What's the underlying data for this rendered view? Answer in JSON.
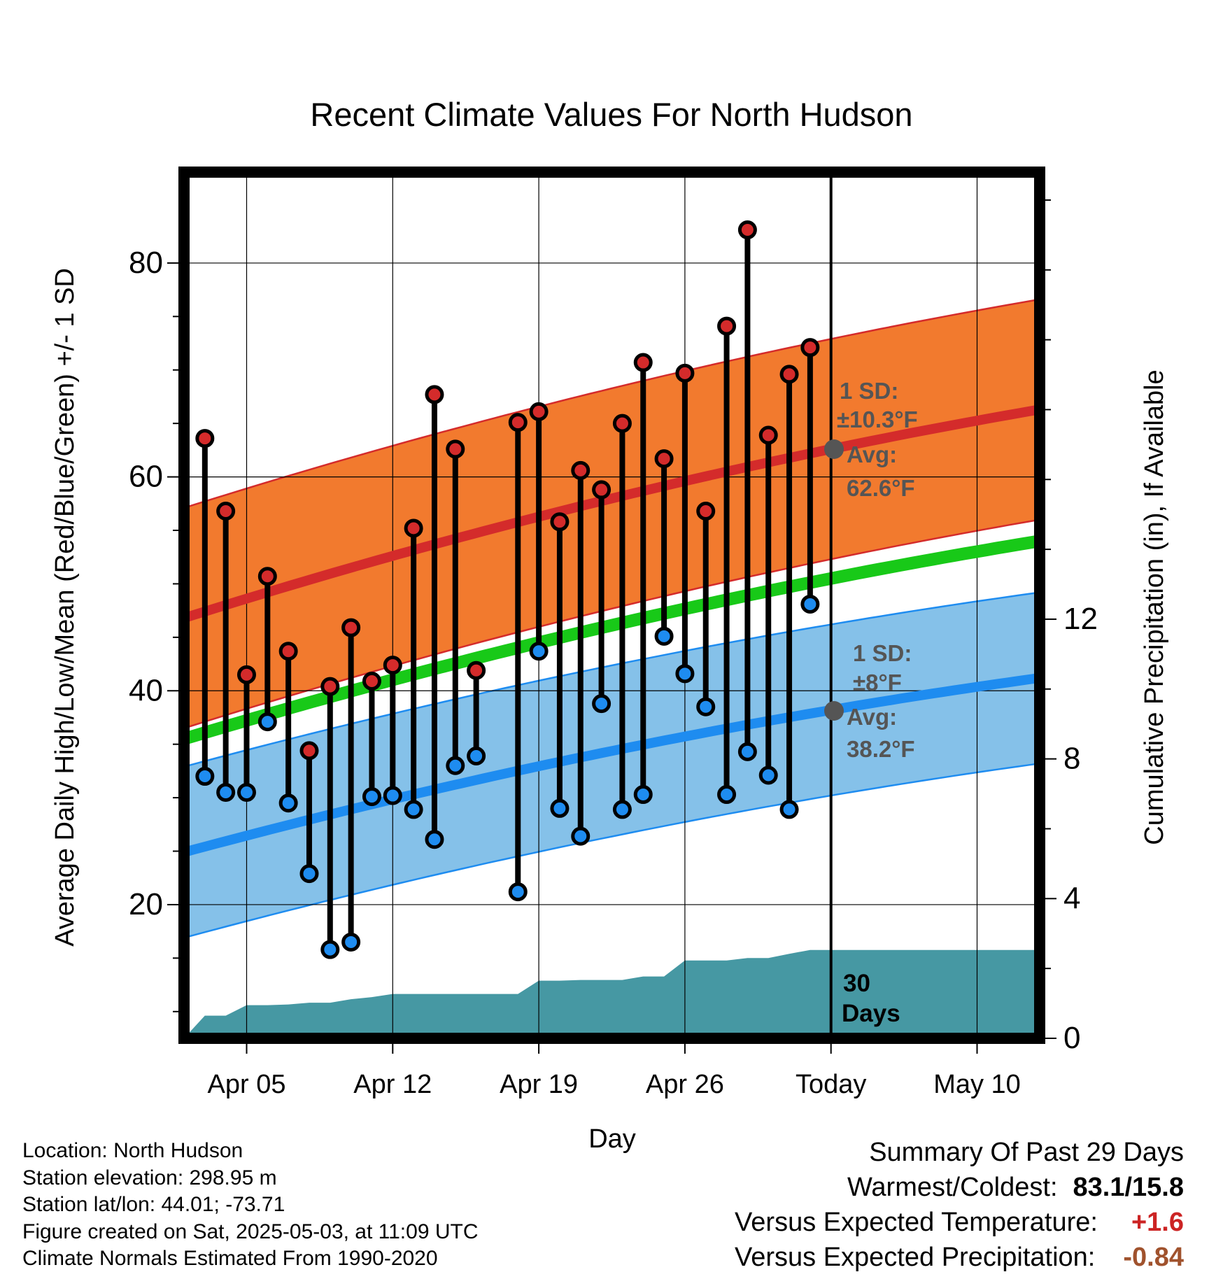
{
  "chart_data": {
    "type": "line",
    "title": "Recent Climate Values For North Hudson",
    "xlabel": "Day",
    "ylabel": "Average Daily High/Low/Mean (Red/Blue/Green) +/- 1 SD",
    "y2label": "Cumulative Precipitation (in), If Available",
    "x_tick_labels": [
      "Apr 05",
      "Apr 12",
      "Apr 19",
      "Apr 26",
      "Today",
      "May 10"
    ],
    "x_tick_dates": [
      "2025-04-05",
      "2025-04-12",
      "2025-04-19",
      "2025-04-26",
      "2025-05-03",
      "2025-05-10"
    ],
    "xlim": [
      "2025-04-02",
      "2025-05-13"
    ],
    "ylim": [
      7.5,
      88.5
    ],
    "y_ticks": [
      20,
      40,
      60,
      80
    ],
    "y2lim": [
      0,
      24.8
    ],
    "y2_ticks": [
      0,
      4,
      8,
      12
    ],
    "grid": true,
    "dates": [
      "2025-04-03",
      "2025-04-04",
      "2025-04-05",
      "2025-04-06",
      "2025-04-07",
      "2025-04-08",
      "2025-04-09",
      "2025-04-10",
      "2025-04-11",
      "2025-04-12",
      "2025-04-13",
      "2025-04-14",
      "2025-04-15",
      "2025-04-16",
      "2025-04-17",
      "2025-04-18",
      "2025-04-19",
      "2025-04-20",
      "2025-04-21",
      "2025-04-22",
      "2025-04-23",
      "2025-04-24",
      "2025-04-25",
      "2025-04-26",
      "2025-04-27",
      "2025-04-28",
      "2025-04-29",
      "2025-04-30",
      "2025-05-01",
      "2025-05-02"
    ],
    "daily_high": [
      63.6,
      56.8,
      41.5,
      50.7,
      43.7,
      34.4,
      40.4,
      45.9,
      40.9,
      42.4,
      55.2,
      67.7,
      62.6,
      41.9,
      null,
      65.1,
      66.1,
      55.8,
      60.6,
      58.8,
      65.0,
      70.7,
      61.7,
      69.7,
      56.8,
      74.1,
      83.1,
      63.9,
      69.6,
      72.1
    ],
    "daily_low": [
      32.0,
      30.5,
      30.5,
      37.1,
      29.5,
      22.9,
      15.8,
      16.5,
      30.1,
      30.2,
      28.9,
      26.1,
      33.0,
      33.9,
      null,
      21.2,
      43.7,
      29.0,
      26.4,
      38.8,
      28.9,
      30.3,
      45.1,
      41.6,
      38.5,
      30.3,
      34.3,
      32.1,
      28.9,
      48.1
    ],
    "normal_high": {
      "start": 46.8,
      "today": 62.6,
      "end": 66.3
    },
    "normal_low": {
      "start": 24.9,
      "today": 38.2,
      "end": 41.2
    },
    "normal_mean": {
      "start": 35.5,
      "today": 50.5,
      "end": 54.0
    },
    "high_sd": 10.3,
    "low_sd": 8,
    "precip_dates": [
      "2025-04-02",
      "2025-04-03",
      "2025-04-04",
      "2025-04-05",
      "2025-04-06",
      "2025-04-07",
      "2025-04-08",
      "2025-04-09",
      "2025-04-10",
      "2025-04-11",
      "2025-04-12",
      "2025-04-13",
      "2025-04-14",
      "2025-04-15",
      "2025-04-16",
      "2025-04-17",
      "2025-04-18",
      "2025-04-19",
      "2025-04-20",
      "2025-04-21",
      "2025-04-22",
      "2025-04-23",
      "2025-04-24",
      "2025-04-25",
      "2025-04-26",
      "2025-04-27",
      "2025-04-28",
      "2025-04-29",
      "2025-04-30",
      "2025-05-01",
      "2025-05-02",
      "2025-05-03",
      "2025-05-13"
    ],
    "precip_cumulative": [
      0.0,
      0.65,
      0.65,
      0.95,
      0.95,
      0.97,
      1.02,
      1.02,
      1.12,
      1.18,
      1.27,
      1.27,
      1.27,
      1.27,
      1.27,
      1.27,
      1.27,
      1.65,
      1.65,
      1.67,
      1.67,
      1.67,
      1.77,
      1.77,
      2.23,
      2.23,
      2.23,
      2.3,
      2.3,
      2.42,
      2.53,
      2.53,
      2.53
    ],
    "colors": {
      "high_band": "#f27a2e",
      "high_line": "#d42b2b",
      "low_band": "#85c1e9",
      "low_line": "#1e8cf0",
      "mean_line": "#18c918",
      "precip_fill": "#4698a3",
      "annotation": "#555555",
      "summary_red": "#cc2424",
      "summary_brown": "#a0522d"
    }
  },
  "annotations": {
    "high_sd": "1 SD:",
    "high_sd_value": "±10.3°F",
    "high_avg": "Avg:",
    "high_avg_value": "62.6°F",
    "low_sd": "1 SD:",
    "low_sd_value": "±8°F",
    "low_avg": "Avg:",
    "low_avg_value": "38.2°F",
    "window_count": "30",
    "window_unit": "Days"
  },
  "footer": {
    "location": "Location: North Hudson",
    "elevation": "Station elevation: 298.95 m",
    "latlon": "Station lat/lon: 44.01; -73.71",
    "created": "Figure created on Sat, 2025-05-03, at 11:09 UTC",
    "normals": "Climate Normals Estimated From 1990-2020"
  },
  "summary": {
    "heading": "Summary Of Past 29 Days",
    "warmest_coldest_label": "Warmest/Coldest:",
    "warmest_coldest_value": "83.1/15.8",
    "temp_label": "Versus Expected Temperature:",
    "temp_value": "+1.6",
    "precip_label": "Versus Expected Precipitation:",
    "precip_value": "-0.84"
  }
}
